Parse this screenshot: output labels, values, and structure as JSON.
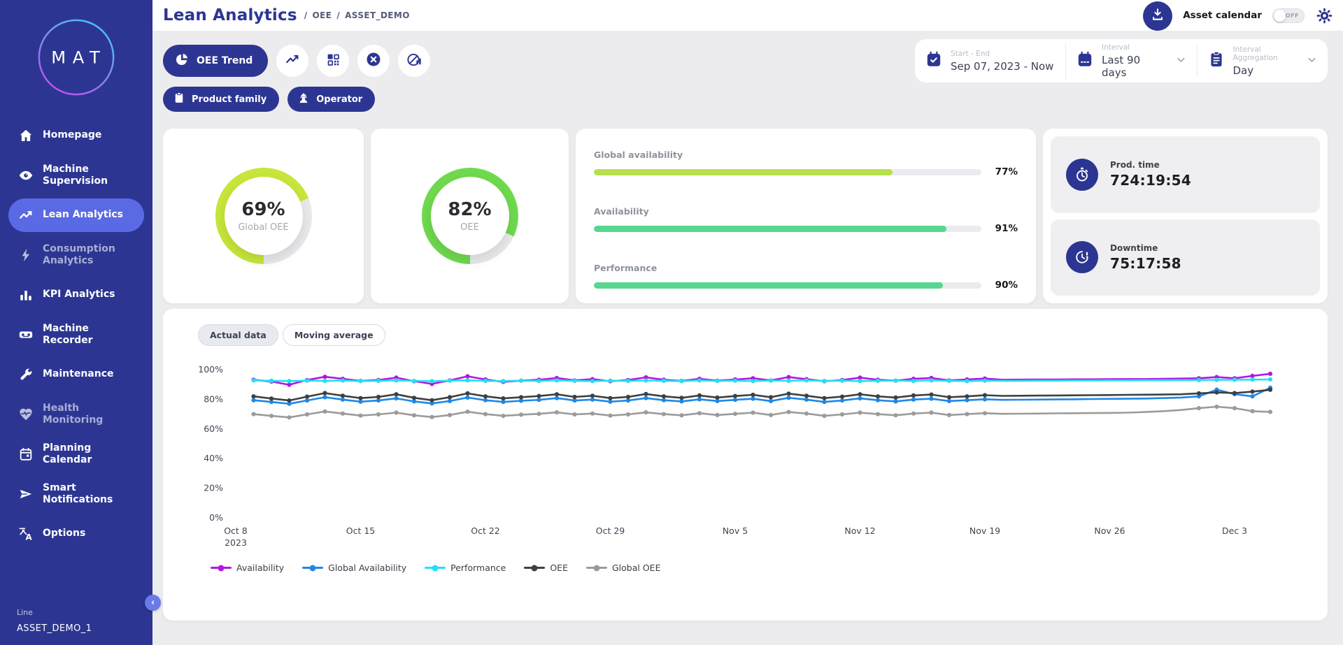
{
  "app": {
    "logo_text": "MAT"
  },
  "sidebar": {
    "items": [
      {
        "label": "Homepage",
        "icon": "home-icon",
        "active": false,
        "disabled": false
      },
      {
        "label": "Machine Supervision",
        "icon": "eye-icon",
        "active": false,
        "disabled": false
      },
      {
        "label": "Lean Analytics",
        "icon": "trend-icon",
        "active": true,
        "disabled": false
      },
      {
        "label": "Consumption Analytics",
        "icon": "bolt-icon",
        "active": false,
        "disabled": true
      },
      {
        "label": "KPI Analytics",
        "icon": "bar-chart-icon",
        "active": false,
        "disabled": false
      },
      {
        "label": "Machine Recorder",
        "icon": "recorder-icon",
        "active": false,
        "disabled": false
      },
      {
        "label": "Maintenance",
        "icon": "wrench-icon",
        "active": false,
        "disabled": false
      },
      {
        "label": "Health Monitoring",
        "icon": "health-icon",
        "active": false,
        "disabled": true
      },
      {
        "label": "Planning Calendar",
        "icon": "calendar-icon",
        "active": false,
        "disabled": false
      },
      {
        "label": "Smart Notifications",
        "icon": "send-icon",
        "active": false,
        "disabled": false
      },
      {
        "label": "Options",
        "icon": "translate-icon",
        "active": false,
        "disabled": false
      }
    ],
    "footer": {
      "line_label": "Line",
      "asset_name": "ASSET_DEMO_1"
    },
    "collapse_glyph": "‹"
  },
  "header": {
    "title": "Lean Analytics",
    "crumb_sep": "/",
    "breadcrumb": [
      "OEE",
      "ASSET_DEMO"
    ],
    "asset_calendar_label": "Asset calendar",
    "toggle_state": "OFF"
  },
  "toolbar": {
    "primary_button": "OEE Trend",
    "product_family_label": "Product family",
    "operator_label": "Operator"
  },
  "filters": {
    "start_end": {
      "label": "Start - End",
      "value": "Sep 07, 2023 - Now"
    },
    "interval": {
      "label": "Interval",
      "value": "Last 90 days"
    },
    "aggregation": {
      "label": "Interval Aggregation",
      "value": "Day"
    }
  },
  "kpis": {
    "gauges": [
      {
        "value": "69%",
        "pct": 69,
        "label": "Global OEE",
        "color": "#c6e63a"
      },
      {
        "value": "82%",
        "pct": 82,
        "label": "OEE",
        "color": "#6fd94e"
      }
    ],
    "bars": [
      {
        "label": "Global availability",
        "value": "77%",
        "pct": 77,
        "color": "#b7e04c"
      },
      {
        "label": "Availability",
        "value": "91%",
        "pct": 91,
        "color": "#57d68f"
      },
      {
        "label": "Performance",
        "value": "90%",
        "pct": 90,
        "color": "#57d68f"
      }
    ],
    "times": [
      {
        "label": "Prod. time",
        "value": "724:19:54",
        "icon": "stopwatch-icon"
      },
      {
        "label": "Downtime",
        "value": "75:17:58",
        "icon": "downtime-clock-icon"
      }
    ]
  },
  "chart": {
    "tabs": [
      {
        "label": "Actual data",
        "active": true
      },
      {
        "label": "Moving average",
        "active": false
      }
    ]
  },
  "chart_data": {
    "type": "line",
    "title": "",
    "xlabel": "",
    "ylabel": "",
    "ylim": [
      0,
      100
    ],
    "grid": false,
    "legend_position": "bottom-left",
    "y_ticks": [
      "100%",
      "80%",
      "60%",
      "40%",
      "20%",
      "0%"
    ],
    "x_ticks": [
      {
        "label": "Oct 8",
        "sub": "2023",
        "day": 0
      },
      {
        "label": "Oct 15",
        "day": 7
      },
      {
        "label": "Oct 22",
        "day": 14
      },
      {
        "label": "Oct 29",
        "day": 21
      },
      {
        "label": "Nov 5",
        "day": 28
      },
      {
        "label": "Nov 12",
        "day": 35
      },
      {
        "label": "Nov 19",
        "day": 42
      },
      {
        "label": "Nov 26",
        "day": 49
      },
      {
        "label": "Dec 3",
        "day": 56
      }
    ],
    "start_day": 1,
    "marker_gap": [
      42,
      52
    ],
    "z_order": [
      4,
      1,
      3,
      0,
      2
    ],
    "series": [
      {
        "name": "Availability",
        "color": "#b316e3",
        "values": [
          93.2,
          92.0,
          89.8,
          93.0,
          95.2,
          93.8,
          92.4,
          93.0,
          94.6,
          92.2,
          90.4,
          92.8,
          95.5,
          93.4,
          91.8,
          92.6,
          93.2,
          94.4,
          92.8,
          93.6,
          92.2,
          93.0,
          94.8,
          93.2,
          92.4,
          93.8,
          92.6,
          93.4,
          94.2,
          92.8,
          95.0,
          93.6,
          92.2,
          93.0,
          94.6,
          93.2,
          92.6,
          93.8,
          94.4,
          92.8,
          93.4,
          94.0,
          93.2,
          93.3,
          93.4,
          93.4,
          93.5,
          93.5,
          93.6,
          93.7,
          93.7,
          93.8,
          94.0,
          94.2,
          95.0,
          94.2,
          95.8,
          97.2
        ]
      },
      {
        "name": "Global Availability",
        "color": "#1e88e5",
        "values": [
          79.4,
          78.2,
          77.0,
          79.2,
          81.4,
          79.8,
          78.4,
          79.2,
          80.6,
          78.6,
          77.2,
          78.8,
          81.2,
          79.4,
          78.2,
          79.0,
          79.6,
          80.8,
          79.2,
          79.8,
          78.4,
          79.2,
          80.8,
          79.4,
          78.6,
          80.0,
          78.8,
          79.6,
          80.4,
          78.8,
          81.0,
          79.8,
          78.2,
          79.2,
          80.6,
          79.4,
          78.6,
          79.8,
          80.4,
          78.8,
          79.4,
          80.0,
          79.6,
          79.7,
          79.8,
          79.9,
          80.0,
          80.2,
          80.3,
          80.4,
          80.5,
          80.8,
          81.2,
          82.0,
          86.5,
          83.5,
          82.0,
          87.8
        ]
      },
      {
        "name": "Performance",
        "color": "#22dff2",
        "values": [
          92.8,
          92.5,
          92.3,
          92.6,
          92.4,
          92.7,
          92.3,
          92.5,
          92.8,
          92.4,
          92.2,
          92.6,
          92.8,
          92.5,
          92.3,
          92.6,
          92.4,
          92.8,
          92.5,
          92.3,
          92.6,
          92.4,
          92.7,
          92.5,
          92.3,
          92.8,
          92.4,
          92.6,
          92.3,
          92.7,
          92.5,
          92.8,
          92.4,
          92.6,
          92.3,
          92.5,
          92.7,
          92.4,
          92.8,
          92.5,
          92.3,
          92.6,
          92.5,
          92.5,
          92.6,
          92.6,
          92.7,
          92.7,
          92.8,
          92.8,
          92.9,
          92.9,
          93.0,
          93.0,
          93.1,
          93.2,
          93.3,
          93.4
        ]
      },
      {
        "name": "OEE",
        "color": "#3d4043",
        "values": [
          82.0,
          80.5,
          79.2,
          81.8,
          84.2,
          82.4,
          80.8,
          81.6,
          83.4,
          81.0,
          79.4,
          81.4,
          84.0,
          82.0,
          80.6,
          81.4,
          82.2,
          83.4,
          81.6,
          82.4,
          80.8,
          81.6,
          83.6,
          82.0,
          81.0,
          82.6,
          81.2,
          82.2,
          83.0,
          81.4,
          83.8,
          82.4,
          80.8,
          81.8,
          83.4,
          82.0,
          81.2,
          82.6,
          83.2,
          81.4,
          82.0,
          82.8,
          82.3,
          82.4,
          82.5,
          82.6,
          82.7,
          82.8,
          82.9,
          83.0,
          83.1,
          83.2,
          83.4,
          84.0,
          84.6,
          84.2,
          85.2,
          86.4
        ]
      },
      {
        "name": "Global OEE",
        "color": "#9b9b9b",
        "values": [
          70.0,
          68.8,
          67.8,
          69.8,
          71.8,
          70.4,
          69.0,
          69.8,
          71.0,
          69.2,
          68.0,
          69.4,
          71.6,
          70.0,
          68.8,
          69.6,
          70.2,
          71.2,
          69.8,
          70.4,
          69.0,
          69.8,
          71.2,
          70.0,
          69.2,
          70.6,
          69.4,
          70.2,
          71.0,
          69.4,
          71.4,
          70.4,
          68.8,
          69.8,
          71.0,
          70.0,
          69.2,
          70.4,
          71.0,
          69.4,
          70.0,
          70.6,
          70.2,
          70.3,
          70.4,
          70.5,
          70.6,
          70.7,
          70.8,
          71.0,
          71.4,
          72.0,
          72.8,
          74.0,
          75.0,
          74.0,
          72.0,
          71.5
        ]
      }
    ]
  }
}
